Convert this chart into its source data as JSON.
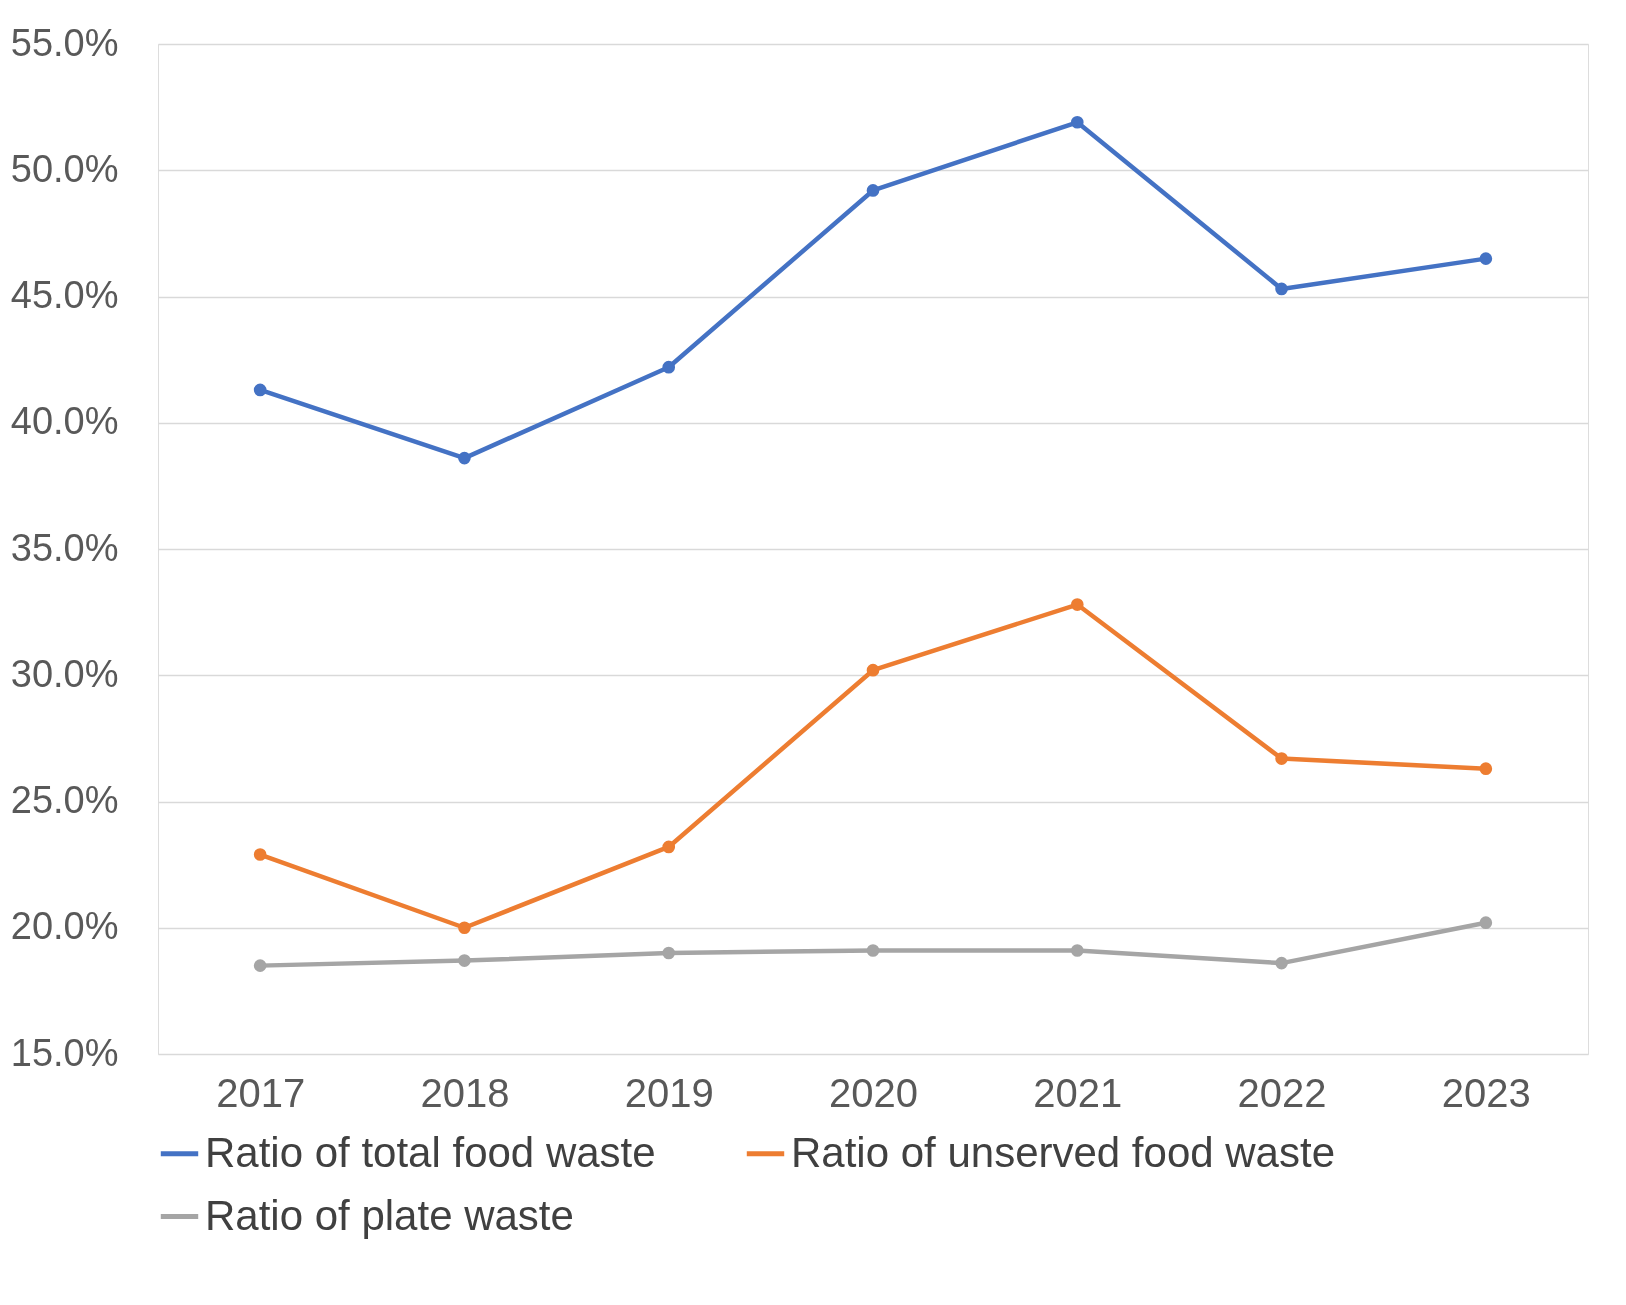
{
  "chart_data": {
    "type": "line",
    "categories": [
      "2017",
      "2018",
      "2019",
      "2020",
      "2021",
      "2022",
      "2023"
    ],
    "series": [
      {
        "name": "Ratio of total food waste",
        "color": "#4472c4",
        "values": [
          41.3,
          38.6,
          42.2,
          49.2,
          51.9,
          45.3,
          46.5
        ]
      },
      {
        "name": "Ratio of unserved food waste",
        "color": "#ed7d31",
        "values": [
          22.9,
          20.0,
          23.2,
          30.2,
          32.8,
          26.7,
          26.3
        ]
      },
      {
        "name": "Ratio of plate waste",
        "color": "#a5a5a5",
        "values": [
          18.5,
          18.7,
          19.0,
          19.1,
          19.1,
          18.6,
          20.2
        ]
      }
    ],
    "ylim": [
      15,
      55
    ],
    "yticks": [
      {
        "value": 15,
        "label": "15.0%"
      },
      {
        "value": 20,
        "label": "20.0%"
      },
      {
        "value": 25,
        "label": "25.0%"
      },
      {
        "value": 30,
        "label": "30.0%"
      },
      {
        "value": 35,
        "label": "35.0%"
      },
      {
        "value": 40,
        "label": "40.0%"
      },
      {
        "value": 45,
        "label": "45.0%"
      },
      {
        "value": 50,
        "label": "50.0%"
      },
      {
        "value": 55,
        "label": "55.0%"
      }
    ],
    "grid": "y",
    "legend": "bottom",
    "marker": "circle",
    "line_style": "solid"
  }
}
